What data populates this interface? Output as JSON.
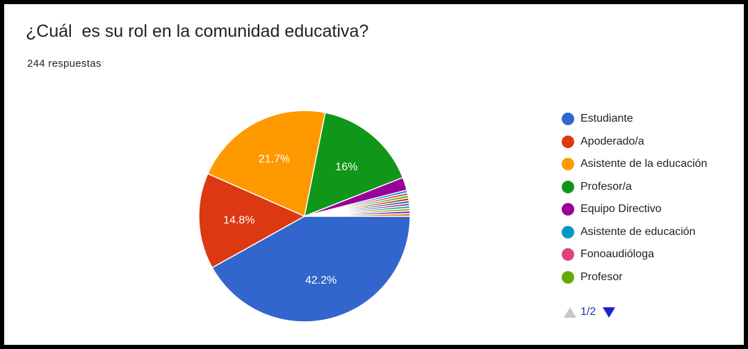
{
  "question": {
    "title": "¿Cuál  es su rol en la comunidad educativa?",
    "responses": "244 respuestas"
  },
  "chart_data": {
    "type": "pie",
    "categories": [
      "Estudiante",
      "Apoderado/a",
      "Asistente de la educación",
      "Profesor/a",
      "Equipo Directivo",
      "Asistente de educación",
      "Fonoaudióloga",
      "Profesor"
    ],
    "values": [
      42.2,
      14.8,
      21.7,
      16,
      2.0,
      0.4,
      0.4,
      0.4
    ],
    "data_labels": [
      "42.2%",
      "14.8%",
      "21.7%",
      "16%",
      "",
      "",
      "",
      ""
    ],
    "colors": [
      "#3366cc",
      "#dc3912",
      "#ff9900",
      "#109618",
      "#990099",
      "#0099c6",
      "#dd4477",
      "#66aa00"
    ],
    "other_small_slices": {
      "count": 7,
      "values": [
        0.4,
        0.4,
        0.4,
        0.4,
        0.4,
        0.4,
        0.4
      ],
      "colors": [
        "#b82e2e",
        "#316395",
        "#994499",
        "#22aa99",
        "#aaaa11",
        "#6633cc",
        "#e67300"
      ]
    },
    "legend_position": "right"
  },
  "legend": {
    "items": [
      {
        "label": "Estudiante",
        "color": "#3366cc"
      },
      {
        "label": "Apoderado/a",
        "color": "#dc3912"
      },
      {
        "label": "Asistente de la educación",
        "color": "#ff9900"
      },
      {
        "label": "Profesor/a",
        "color": "#109618"
      },
      {
        "label": "Equipo Directivo",
        "color": "#990099"
      },
      {
        "label": "Asistente de educación",
        "color": "#0099c6"
      },
      {
        "label": "Fonoaudióloga",
        "color": "#dd4477"
      },
      {
        "label": "Profesor",
        "color": "#66aa00"
      }
    ],
    "page_text": "1/2"
  }
}
